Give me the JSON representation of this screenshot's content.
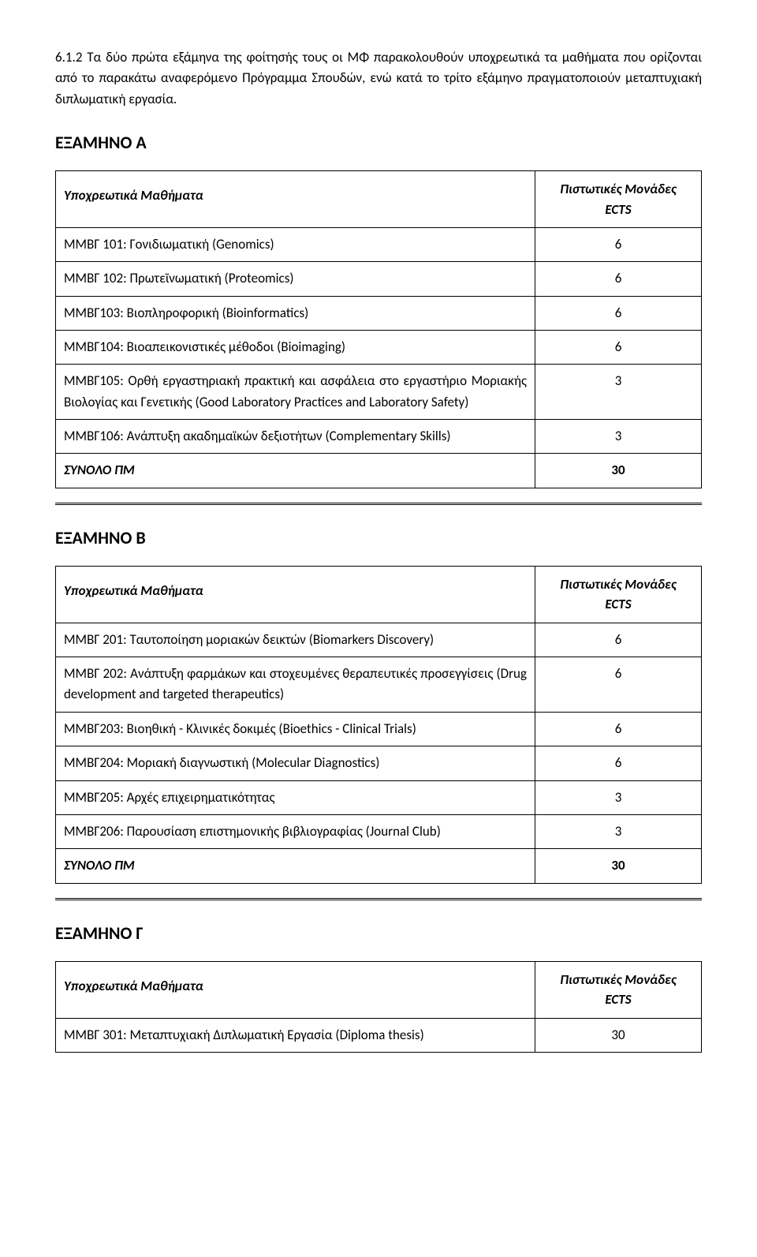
{
  "intro": "6.1.2 Τα δύο πρώτα εξάμηνα της φοίτησής τους οι ΜΦ παρακολουθούν υποχρεωτικά τα μαθήματα που ορίζονται από το παρακάτω αναφερόμενο Πρόγραμμα Σπουδών, ενώ κατά το τρίτο εξάμηνο πραγματοποιούν μεταπτυχιακή διπλωματική εργασία.",
  "Α": {
    "title": "ΕΞΑΜΗΝΟ Α",
    "header_courses": "Υποχρεωτικά Μαθήματα",
    "header_ects_line1": "Πιστωτικές Μονάδες",
    "header_ects_line2": "ECTS",
    "r0": {
      "c": "ΜΜΒΓ 101: Γονιδιωματική (Genomics)",
      "e": "6"
    },
    "r1": {
      "c": "ΜΜΒΓ 102: Πρωτεϊνωματική (Proteomics)",
      "e": "6"
    },
    "r2": {
      "c": "ΜΜΒΓ103: Βιοπληροφορική (Bioinformatics)",
      "e": "6"
    },
    "r3": {
      "c": "ΜΜΒΓ104: Βιοαπεικονιστικές μέθοδοι (Bioimaging)",
      "e": "6"
    },
    "r4": {
      "c": "ΜΜΒΓ105: Ορθή εργαστηριακή πρακτική και ασφάλεια στο εργαστήριο Μοριακής Βιολογίας και Γενετικής (Good Laboratory Practices and Laboratory Safety)",
      "e": "3"
    },
    "r5": {
      "c": "ΜΜΒΓ106: Ανάπτυξη ακαδημαϊκών δεξιοτήτων (Complementary Skills)",
      "e": "3"
    },
    "total_label": "ΣΥΝΟΛΟ ΠΜ",
    "total": "30"
  },
  "Β": {
    "title": "ΕΞΑΜΗΝΟ Β",
    "header_courses": "Υποχρεωτικά Μαθήματα",
    "header_ects_line1": "Πιστωτικές Μονάδες",
    "header_ects_line2": "ECTS",
    "r0": {
      "c": "ΜΜΒΓ 201: Ταυτοποίηση μοριακών δεικτών (Biomarkers Discovery)",
      "e": "6"
    },
    "r1": {
      "c": "ΜΜΒΓ 202: Ανάπτυξη φαρμάκων και στοχευμένες θεραπευτικές προσεγγίσεις (Drug development and targeted therapeutics)",
      "e": "6"
    },
    "r2": {
      "c": "ΜΜΒΓ203: Βιοηθική - Κλινικές δοκιμές (Bioethics - Clinical Trials)",
      "e": "6"
    },
    "r3": {
      "c": "ΜΜΒΓ204: Μοριακή διαγνωστική (Molecular Diagnostics)",
      "e": "6"
    },
    "r4": {
      "c": "ΜΜΒΓ205: Αρχές επιχειρηματικότητας",
      "e": "3"
    },
    "r5": {
      "c": "ΜΜΒΓ206: Παρουσίαση επιστημονικής βιβλιογραφίας (Journal Club)",
      "e": "3"
    },
    "total_label": "ΣΥΝΟΛΟ ΠΜ",
    "total": "30"
  },
  "Γ": {
    "title": "ΕΞΑΜΗΝΟ Γ",
    "header_courses": "Υποχρεωτικά Μαθήματα",
    "header_ects_line1": "Πιστωτικές Μονάδες",
    "header_ects_line2": "ECTS",
    "r0": {
      "c": "ΜΜΒΓ 301: Μεταπτυχιακή Διπλωματική Εργασία (Diploma thesis)",
      "e": "30"
    }
  }
}
